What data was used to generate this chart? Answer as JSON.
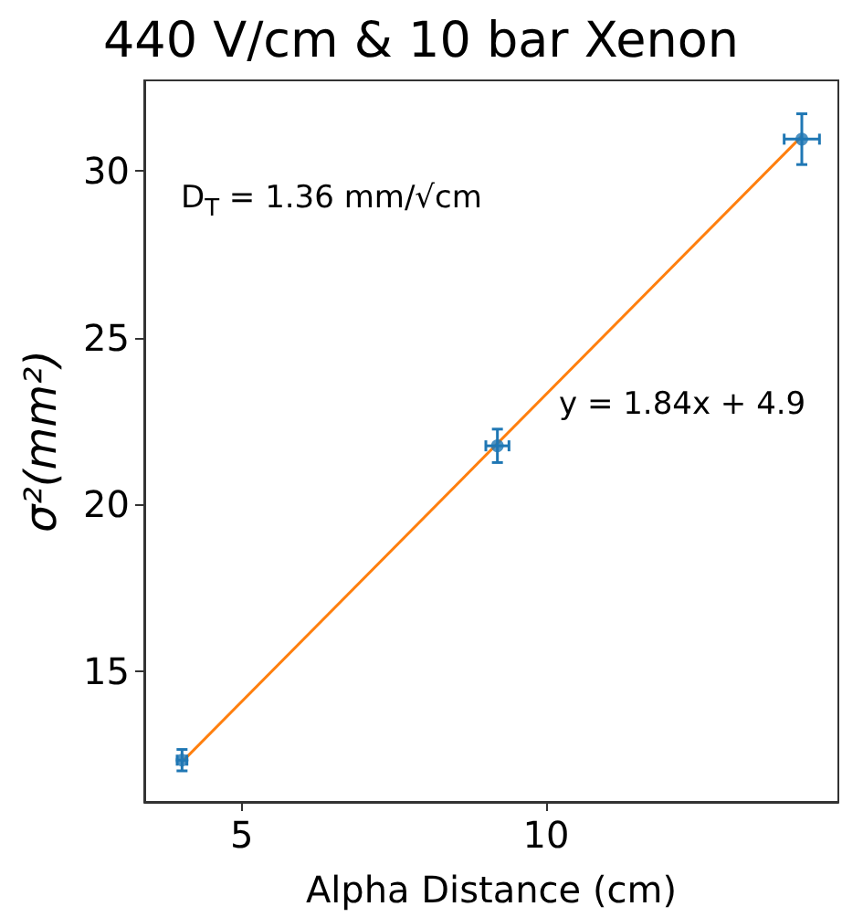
{
  "chart_data": {
    "type": "scatter",
    "title": "440 V/cm & 10 bar Xenon",
    "xlabel": "Alpha Distance (cm)",
    "ylabel": "σ²(mm²)",
    "x": [
      4.02,
      9.2,
      14.2
    ],
    "series": [
      {
        "color": "#1f77b4",
        "marker": "circle",
        "values": [
          12.35,
          21.76,
          30.94
        ],
        "errors": [
          0.32,
          0.5,
          0.76
        ],
        "xerrors": [
          0.08,
          0.19,
          0.29
        ]
      },
      {
        "type": "line",
        "marker": "none",
        "color": "#ff7f0e",
        "x": [
          4.02,
          14.2
        ],
        "values": [
          12.3,
          31.03
        ]
      }
    ],
    "annotations": [
      "D$_{T}$ = 1.36 mm/√cm",
      "y = 1.84x + 4.9"
    ],
    "xlim": [
      3.4,
      14.8
    ],
    "ylim": [
      11.1,
      32.7
    ],
    "xticks": [
      5,
      10
    ],
    "yticks": [
      15,
      20,
      25,
      30
    ],
    "grid": false
  }
}
